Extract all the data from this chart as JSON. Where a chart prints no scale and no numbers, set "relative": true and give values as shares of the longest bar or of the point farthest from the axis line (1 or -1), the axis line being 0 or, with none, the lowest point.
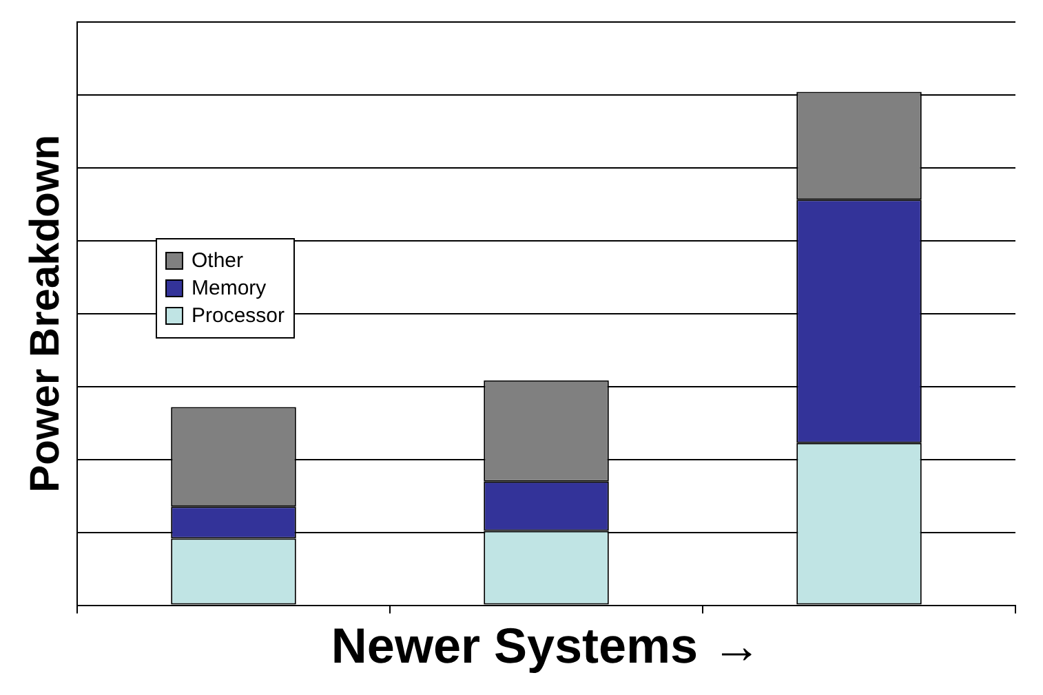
{
  "chart_data": {
    "type": "bar",
    "stacked": true,
    "relative": true,
    "ylabel": "Power Breakdown",
    "xlabel": "Newer Systems →",
    "categories": [
      null,
      null,
      null
    ],
    "legend": "left",
    "grid": "y",
    "series": [
      {
        "name": "Processor",
        "color": "#c0e4e4",
        "values": [
          0.13,
          0.145,
          0.316
        ]
      },
      {
        "name": "Memory",
        "color": "#333399",
        "values": [
          0.062,
          0.096,
          0.474
        ]
      },
      {
        "name": "Other",
        "color": "#808080",
        "values": [
          0.194,
          0.197,
          0.21
        ]
      }
    ]
  }
}
